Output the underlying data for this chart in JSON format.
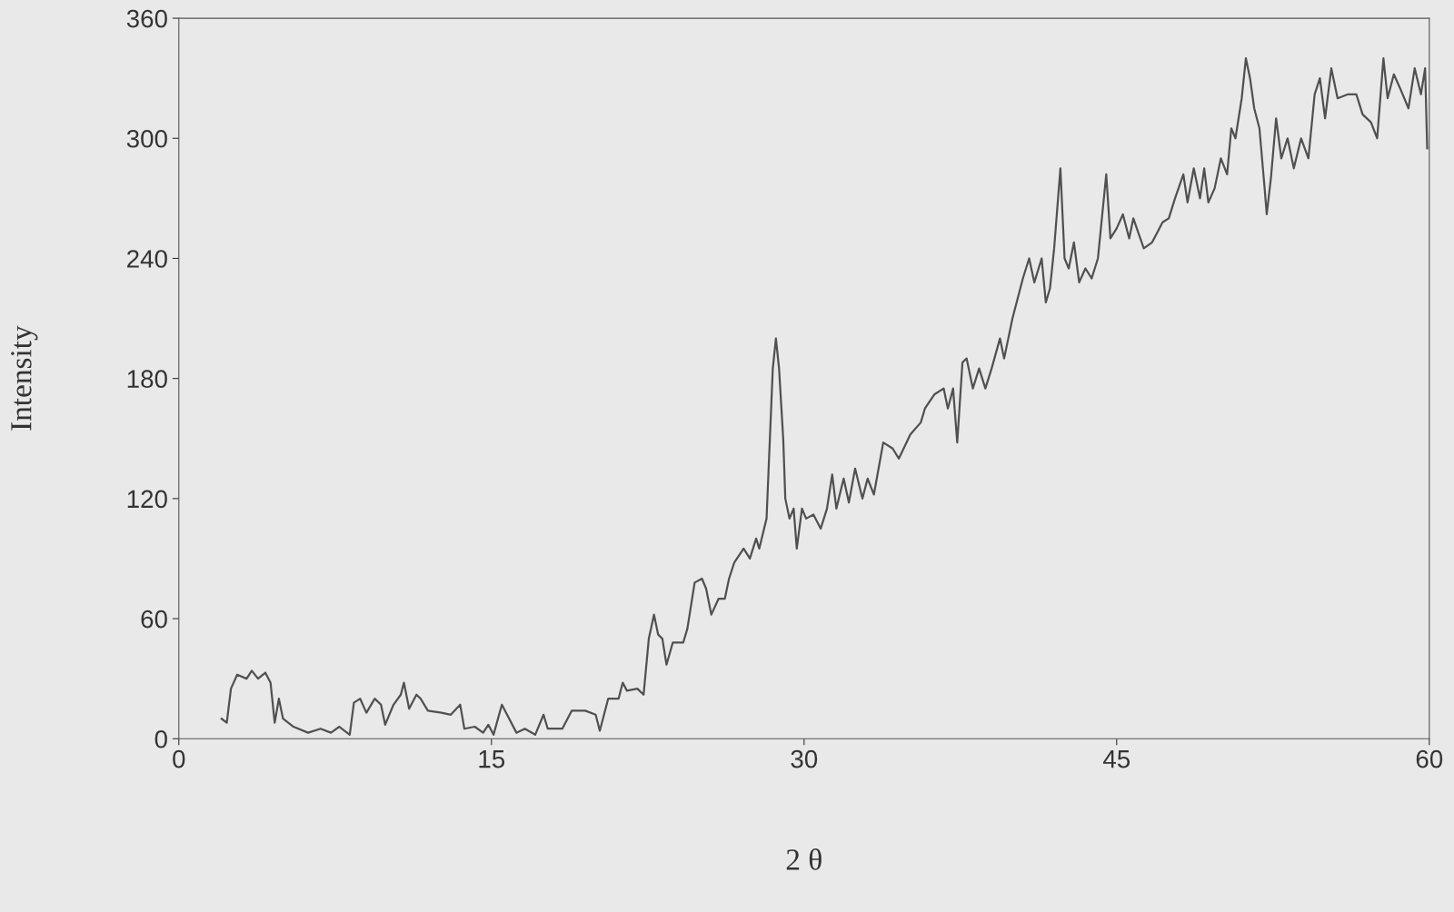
{
  "chart_data": {
    "type": "line",
    "xlabel": "2 θ",
    "ylabel": "Intensity",
    "x": [
      2.05,
      2.3,
      2.5,
      2.8,
      3.25,
      3.5,
      3.8,
      4.15,
      4.4,
      4.6,
      4.8,
      5.0,
      5.5,
      6.2,
      6.8,
      7.3,
      7.7,
      8.2,
      8.4,
      8.7,
      9.0,
      9.4,
      9.7,
      9.9,
      10.3,
      10.65,
      10.8,
      11.05,
      11.4,
      11.6,
      11.95,
      12.6,
      13.05,
      13.5,
      13.7,
      14.2,
      14.6,
      14.85,
      15.1,
      15.5,
      15.75,
      16.2,
      16.6,
      17.1,
      17.5,
      17.7,
      18.4,
      18.85,
      19.5,
      20.0,
      20.2,
      20.6,
      21.1,
      21.3,
      21.5,
      22.0,
      22.3,
      22.55,
      22.8,
      23.0,
      23.2,
      23.4,
      23.7,
      24.2,
      24.4,
      24.75,
      25.1,
      25.3,
      25.55,
      25.9,
      26.2,
      26.4,
      26.65,
      27.1,
      27.4,
      27.7,
      27.85,
      28.2,
      28.3,
      28.5,
      28.65,
      28.8,
      29.0,
      29.1,
      29.3,
      29.5,
      29.65,
      29.9,
      30.1,
      30.45,
      30.8,
      31.1,
      31.35,
      31.55,
      31.9,
      32.15,
      32.45,
      32.8,
      33.05,
      33.35,
      33.8,
      34.25,
      34.55,
      35.1,
      35.6,
      35.8,
      36.25,
      36.7,
      36.9,
      37.15,
      37.35,
      37.6,
      37.8,
      38.1,
      38.4,
      38.7,
      39.0,
      39.4,
      39.6,
      40.0,
      40.5,
      40.8,
      41.05,
      41.4,
      41.6,
      41.8,
      42.0,
      42.3,
      42.5,
      42.7,
      42.95,
      43.2,
      43.5,
      43.8,
      44.1,
      44.5,
      44.7,
      45.0,
      45.3,
      45.6,
      45.8,
      46.3,
      46.7,
      47.2,
      47.5,
      47.8,
      48.2,
      48.4,
      48.7,
      49.0,
      49.2,
      49.4,
      49.7,
      50.0,
      50.3,
      50.5,
      50.7,
      51.0,
      51.2,
      51.4,
      51.6,
      51.85,
      52.1,
      52.2,
      52.4,
      52.65,
      52.9,
      53.2,
      53.5,
      53.85,
      54.2,
      54.5,
      54.75,
      55.0,
      55.3,
      55.6,
      56.1,
      56.5,
      56.8,
      57.2,
      57.5,
      57.8,
      58.0,
      58.3,
      58.6,
      59.0,
      59.3,
      59.6,
      59.8,
      59.9
    ],
    "series": [
      {
        "color": "#505050",
        "values": [
          10,
          8,
          25,
          32,
          30,
          34,
          30,
          33,
          28,
          8,
          20,
          10,
          6,
          3,
          5,
          3,
          6,
          2,
          18,
          20,
          13,
          20,
          17,
          7,
          17,
          22,
          28,
          15,
          22,
          20,
          14,
          13,
          12,
          17,
          5,
          6,
          3,
          7,
          2,
          17,
          12,
          3,
          5,
          2,
          12,
          5,
          5,
          14,
          14,
          12,
          4,
          20,
          20,
          28,
          24,
          25,
          22,
          50,
          62,
          52,
          50,
          37,
          48,
          48,
          55,
          78,
          80,
          75,
          62,
          70,
          70,
          80,
          88,
          95,
          90,
          100,
          95,
          110,
          135,
          185,
          200,
          185,
          150,
          120,
          110,
          115,
          95,
          115,
          110,
          112,
          105,
          115,
          132,
          115,
          130,
          118,
          135,
          120,
          130,
          122,
          148,
          145,
          140,
          152,
          158,
          165,
          172,
          175,
          165,
          175,
          148,
          188,
          190,
          175,
          185,
          175,
          185,
          200,
          190,
          210,
          230,
          240,
          228,
          240,
          218,
          225,
          245,
          285,
          240,
          235,
          248,
          228,
          235,
          230,
          240,
          282,
          250,
          255,
          262,
          250,
          260,
          245,
          248,
          258,
          260,
          270,
          282,
          268,
          285,
          270,
          285,
          268,
          275,
          290,
          282,
          305,
          300,
          320,
          340,
          330,
          315,
          305,
          275,
          262,
          280,
          310,
          290,
          300,
          285,
          300,
          290,
          322,
          330,
          310,
          335,
          320,
          322,
          322,
          312,
          308,
          300,
          340,
          320,
          332,
          325,
          315,
          335,
          322,
          335,
          295
        ]
      }
    ],
    "xlim": [
      0,
      60
    ],
    "xticks": [
      0,
      15,
      30,
      45,
      60
    ],
    "ylim": [
      0,
      360
    ],
    "yticks": [
      0,
      60,
      120,
      180,
      240,
      300,
      360
    ],
    "grid": false,
    "marker": "none",
    "line_style": "solid"
  }
}
